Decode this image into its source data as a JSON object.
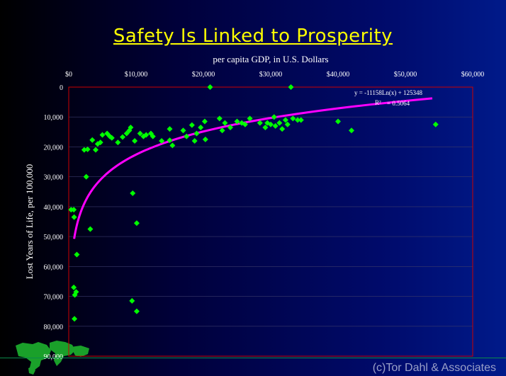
{
  "title": "Safety Is Linked to Prosperity",
  "subtitle": "per capita GDP, in U.S. Dollars",
  "ylabel": "Lost Years of Life, per 100,000",
  "credit": "(c)Tor Dahl & Associates",
  "equation": "y = -11158Ln(x) + 125348",
  "r2_symbol": "R²",
  "r2_value": "= 0.5064",
  "chart_data": {
    "type": "scatter",
    "title": "Safety Is Linked to Prosperity",
    "xlabel": "per capita GDP, in U.S. Dollars",
    "ylabel": "Lost Years of Life, per 100,000",
    "xlim": [
      0,
      60000
    ],
    "ylim": [
      0,
      90000
    ],
    "y_inverted": true,
    "x_ticks": [
      "$0",
      "$10,000",
      "$20,000",
      "$30,000",
      "$40,000",
      "$50,000",
      "$60,000"
    ],
    "y_ticks": [
      "0",
      "10,000",
      "20,000",
      "30,000",
      "40,000",
      "50,000",
      "60,000",
      "70,000",
      "80,000",
      "90,000"
    ],
    "marker_color": "#00ff00",
    "trend_color": "#ff00ff",
    "frame_color": "#cc0000",
    "trendline": {
      "type": "logarithmic",
      "a": -11158,
      "b": 125348,
      "x_range": [
        800,
        54000
      ],
      "equation": "y = -11158Ln(x) + 125348",
      "r2": 0.5064
    },
    "points": [
      [
        350,
        41000
      ],
      [
        750,
        41000
      ],
      [
        800,
        43500
      ],
      [
        750,
        67000
      ],
      [
        900,
        69500
      ],
      [
        1100,
        68500
      ],
      [
        850,
        77500
      ],
      [
        1200,
        56000
      ],
      [
        2600,
        30000
      ],
      [
        3200,
        47500
      ],
      [
        2300,
        21000
      ],
      [
        2800,
        20800
      ],
      [
        3500,
        17700
      ],
      [
        4000,
        21000
      ],
      [
        4300,
        19000
      ],
      [
        4700,
        18500
      ],
      [
        5000,
        16000
      ],
      [
        5700,
        15500
      ],
      [
        6100,
        16500
      ],
      [
        6400,
        17000
      ],
      [
        7300,
        18500
      ],
      [
        8000,
        16700
      ],
      [
        8600,
        15500
      ],
      [
        9000,
        14500
      ],
      [
        9200,
        13500
      ],
      [
        9500,
        35500
      ],
      [
        9400,
        71500
      ],
      [
        9800,
        18000
      ],
      [
        10100,
        75000
      ],
      [
        10100,
        45500
      ],
      [
        10600,
        15500
      ],
      [
        11100,
        16500
      ],
      [
        11500,
        16000
      ],
      [
        12200,
        15500
      ],
      [
        12500,
        16500
      ],
      [
        13800,
        18000
      ],
      [
        15000,
        17800
      ],
      [
        15000,
        14000
      ],
      [
        15400,
        19500
      ],
      [
        17000,
        14500
      ],
      [
        17500,
        16500
      ],
      [
        18300,
        12700
      ],
      [
        18700,
        18000
      ],
      [
        19000,
        15500
      ],
      [
        19600,
        13500
      ],
      [
        20200,
        11500
      ],
      [
        20300,
        17500
      ],
      [
        21000,
        0
      ],
      [
        22400,
        10500
      ],
      [
        22800,
        14500
      ],
      [
        23200,
        12000
      ],
      [
        24000,
        13500
      ],
      [
        25000,
        11500
      ],
      [
        25700,
        12000
      ],
      [
        26200,
        12500
      ],
      [
        26900,
        10500
      ],
      [
        28400,
        12000
      ],
      [
        29200,
        13500
      ],
      [
        29500,
        12000
      ],
      [
        30000,
        12500
      ],
      [
        30700,
        13000
      ],
      [
        30500,
        10000
      ],
      [
        31300,
        12000
      ],
      [
        31700,
        14000
      ],
      [
        32200,
        11000
      ],
      [
        32500,
        12500
      ],
      [
        33000,
        0
      ],
      [
        33300,
        10500
      ],
      [
        34000,
        11000
      ],
      [
        34500,
        11000
      ],
      [
        40000,
        11500
      ],
      [
        42000,
        14500
      ],
      [
        54500,
        12500
      ]
    ]
  }
}
